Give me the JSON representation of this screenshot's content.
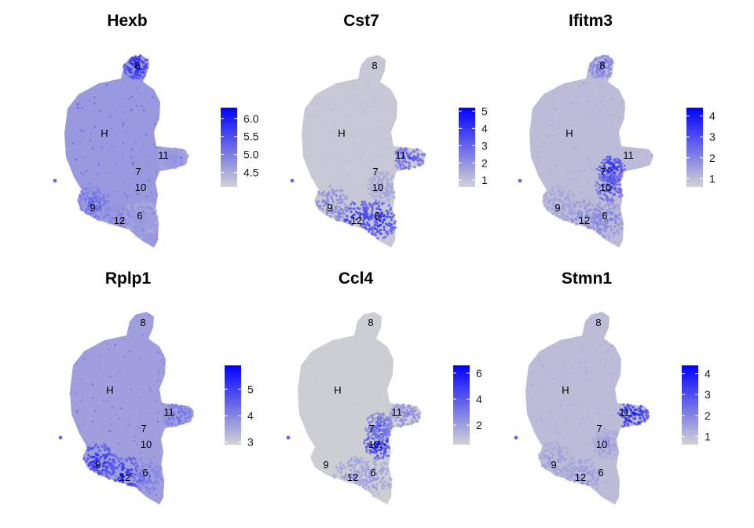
{
  "chart_data": [
    {
      "type": "scatter",
      "title": "Hexb",
      "legend": {
        "position": "right",
        "colors": [
          "#d3d3d3",
          "#0000ff"
        ],
        "range": [
          4.1,
          6.3
        ],
        "ticks": [
          "4.5",
          "5.0",
          "5.5",
          "6.0"
        ]
      },
      "background_level": 0.5,
      "hotspots": [
        {
          "cluster": "8",
          "level": 0.95
        },
        {
          "cluster": "9",
          "level": 0.6
        },
        {
          "cluster": "12",
          "level": 0.45
        },
        {
          "cluster": "11",
          "level": 0.35
        },
        {
          "cluster": "6",
          "level": 0.3
        }
      ],
      "cluster_labels": [
        "8",
        "H",
        "11",
        "7",
        "10",
        "9",
        "12",
        "6"
      ]
    },
    {
      "type": "scatter",
      "title": "Cst7",
      "legend": {
        "position": "right",
        "colors": [
          "#d3d3d3",
          "#0000ff"
        ],
        "range": [
          0.6,
          5.2
        ],
        "ticks": [
          "1",
          "2",
          "3",
          "4",
          "5"
        ]
      },
      "background_level": 0.1,
      "hotspots": [
        {
          "cluster": "6",
          "level": 0.9
        },
        {
          "cluster": "12",
          "level": 0.85
        },
        {
          "cluster": "11",
          "level": 0.65
        },
        {
          "cluster": "9",
          "level": 0.45
        },
        {
          "cluster": "10",
          "level": 0.3
        }
      ],
      "cluster_labels": [
        "8",
        "H",
        "11",
        "7",
        "10",
        "9",
        "12",
        "6"
      ]
    },
    {
      "type": "scatter",
      "title": "Ifitm3",
      "legend": {
        "position": "right",
        "colors": [
          "#d3d3d3",
          "#0000ff"
        ],
        "range": [
          0.6,
          4.4
        ],
        "ticks": [
          "1",
          "2",
          "3",
          "4"
        ]
      },
      "background_level": 0.2,
      "hotspots": [
        {
          "cluster": "7",
          "level": 0.9
        },
        {
          "cluster": "10",
          "level": 0.7
        },
        {
          "cluster": "8",
          "level": 0.5
        },
        {
          "cluster": "12",
          "level": 0.45
        },
        {
          "cluster": "6",
          "level": 0.45
        },
        {
          "cluster": "9",
          "level": 0.3
        }
      ],
      "cluster_labels": [
        "8",
        "H",
        "11",
        "7",
        "10",
        "9",
        "12",
        "6"
      ]
    },
    {
      "type": "scatter",
      "title": "Rplp1",
      "legend": {
        "position": "right",
        "colors": [
          "#d3d3d3",
          "#0000ff"
        ],
        "range": [
          2.9,
          5.9
        ],
        "ticks": [
          "3",
          "4",
          "5"
        ]
      },
      "background_level": 0.45,
      "hotspots": [
        {
          "cluster": "9",
          "level": 0.9
        },
        {
          "cluster": "12",
          "level": 0.9
        },
        {
          "cluster": "6",
          "level": 0.5
        },
        {
          "cluster": "11",
          "level": 0.55
        }
      ],
      "cluster_labels": [
        "8",
        "H",
        "11",
        "7",
        "10",
        "9",
        "12",
        "6"
      ]
    },
    {
      "type": "scatter",
      "title": "Ccl4",
      "legend": {
        "position": "right",
        "colors": [
          "#d3d3d3",
          "#0000ff"
        ],
        "range": [
          0.5,
          6.6
        ],
        "ticks": [
          "2",
          "4",
          "6"
        ]
      },
      "background_level": 0.05,
      "hotspots": [
        {
          "cluster": "10",
          "level": 0.9
        },
        {
          "cluster": "7",
          "level": 0.6
        },
        {
          "cluster": "11",
          "level": 0.4
        },
        {
          "cluster": "12",
          "level": 0.35
        },
        {
          "cluster": "6",
          "level": 0.3
        }
      ],
      "cluster_labels": [
        "8",
        "H",
        "11",
        "7",
        "10",
        "9",
        "12",
        "6"
      ]
    },
    {
      "type": "scatter",
      "title": "Stmn1",
      "legend": {
        "position": "right",
        "colors": [
          "#d3d3d3",
          "#0000ff"
        ],
        "range": [
          0.6,
          4.4
        ],
        "ticks": [
          "1",
          "2",
          "3",
          "4"
        ]
      },
      "background_level": 0.2,
      "hotspots": [
        {
          "cluster": "11",
          "level": 0.95
        },
        {
          "cluster": "12",
          "level": 0.35
        },
        {
          "cluster": "9",
          "level": 0.3
        },
        {
          "cluster": "10",
          "level": 0.3
        }
      ],
      "cluster_labels": [
        "8",
        "H",
        "11",
        "7",
        "10",
        "9",
        "12",
        "6"
      ]
    }
  ]
}
